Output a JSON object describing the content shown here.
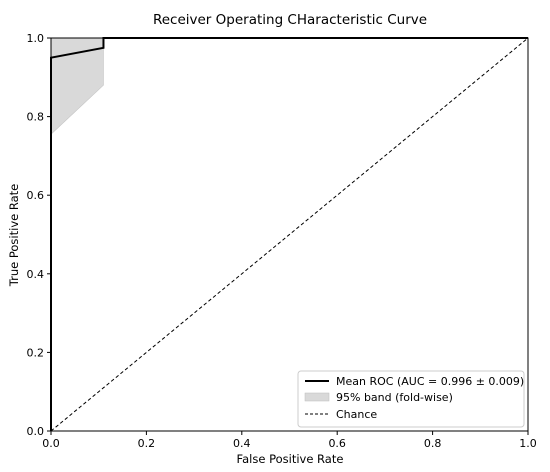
{
  "chart_data": {
    "type": "line",
    "title": "Receiver Operating CHaracteristic Curve",
    "xlabel": "False Positive Rate",
    "ylabel": "True Positive Rate",
    "xlim": [
      0.0,
      1.0
    ],
    "ylim": [
      0.0,
      1.0
    ],
    "xticks": [
      "0.0",
      "0.2",
      "0.4",
      "0.6",
      "0.8",
      "1.0"
    ],
    "yticks": [
      "0.0",
      "0.2",
      "0.4",
      "0.6",
      "0.8",
      "1.0"
    ],
    "grid": false,
    "legend_position": "lower-right",
    "series": [
      {
        "name": "Mean ROC (AUC = 0.996 ± 0.009)",
        "color": "#000000",
        "style": "solid",
        "x": [
          0.0,
          0.0,
          0.11,
          0.11,
          1.0
        ],
        "y": [
          0.0,
          0.95,
          0.975,
          1.0,
          1.0
        ]
      },
      {
        "name": "Chance",
        "color": "#000000",
        "style": "dashed",
        "x": [
          0.0,
          1.0
        ],
        "y": [
          0.0,
          1.0
        ]
      }
    ],
    "band": {
      "name": "95% band (fold-wise)",
      "color": "#d9d9d9",
      "x": [
        0.0,
        0.0,
        0.11,
        0.11
      ],
      "y_upper": [
        0.0,
        1.0,
        1.0,
        1.0
      ],
      "y_lower": [
        0.0,
        0.755,
        0.88,
        1.0
      ]
    }
  }
}
